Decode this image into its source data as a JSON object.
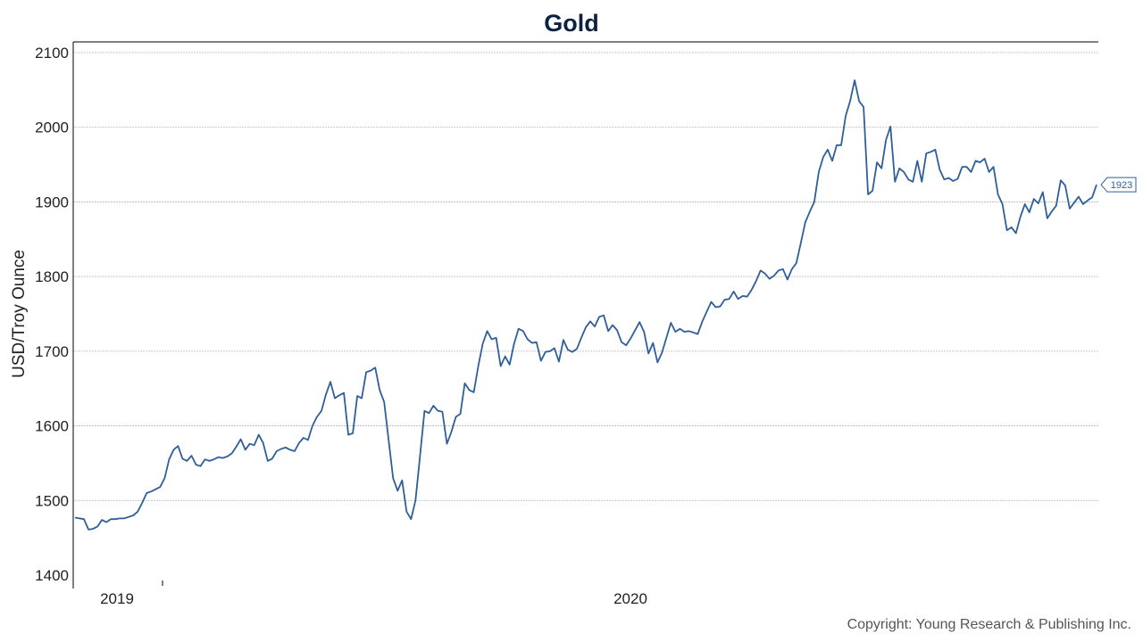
{
  "chart_data": {
    "type": "line",
    "title": "Gold",
    "ylabel": "USD/Troy Ounce",
    "xlabel": "",
    "ylim": [
      1400,
      2100
    ],
    "yticks": [
      "1400",
      "1500",
      "1600",
      "1700",
      "1800",
      "1900",
      "2000",
      "2100"
    ],
    "xticks": [
      "2019",
      "2020"
    ],
    "grid": true,
    "last_value_label": "1923",
    "series": [
      {
        "color": "#2e5f9a",
        "values": [
          1477,
          1476,
          1475,
          1461,
          1462,
          1465,
          1474,
          1471,
          1475,
          1475,
          1476,
          1476,
          1478,
          1480,
          1485,
          1497,
          1510,
          1512,
          1515,
          1518,
          1530,
          1555,
          1568,
          1573,
          1556,
          1553,
          1560,
          1548,
          1546,
          1555,
          1553,
          1555,
          1558,
          1557,
          1559,
          1563,
          1572,
          1582,
          1568,
          1576,
          1574,
          1588,
          1577,
          1553,
          1556,
          1566,
          1569,
          1571,
          1568,
          1566,
          1577,
          1584,
          1581,
          1600,
          1612,
          1620,
          1642,
          1659,
          1637,
          1641,
          1644,
          1588,
          1590,
          1640,
          1637,
          1672,
          1674,
          1678,
          1648,
          1632,
          1581,
          1530,
          1513,
          1527,
          1485,
          1475,
          1500,
          1560,
          1620,
          1617,
          1627,
          1620,
          1619,
          1576,
          1592,
          1612,
          1616,
          1657,
          1648,
          1645,
          1680,
          1710,
          1727,
          1716,
          1718,
          1680,
          1693,
          1682,
          1710,
          1730,
          1727,
          1716,
          1711,
          1712,
          1687,
          1699,
          1700,
          1704,
          1686,
          1715,
          1702,
          1699,
          1703,
          1718,
          1732,
          1740,
          1733,
          1746,
          1748,
          1727,
          1735,
          1728,
          1712,
          1708,
          1717,
          1728,
          1739,
          1726,
          1697,
          1711,
          1685,
          1698,
          1718,
          1738,
          1726,
          1730,
          1726,
          1727,
          1725,
          1723,
          1740,
          1753,
          1766,
          1759,
          1760,
          1769,
          1770,
          1780,
          1770,
          1774,
          1773,
          1782,
          1794,
          1808,
          1804,
          1797,
          1801,
          1808,
          1810,
          1796,
          1810,
          1818,
          1845,
          1873,
          1887,
          1900,
          1940,
          1960,
          1970,
          1955,
          1976,
          1976,
          2015,
          2035,
          2063,
          2035,
          2027,
          1910,
          1915,
          1953,
          1945,
          1983,
          2001,
          1927,
          1945,
          1940,
          1930,
          1927,
          1955,
          1927,
          1965,
          1967,
          1970,
          1943,
          1930,
          1932,
          1928,
          1931,
          1947,
          1947,
          1940,
          1955,
          1953,
          1958,
          1940,
          1947,
          1910,
          1897,
          1862,
          1866,
          1858,
          1880,
          1897,
          1886,
          1904,
          1898,
          1913,
          1878,
          1887,
          1895,
          1929,
          1922,
          1891,
          1899,
          1907,
          1897,
          1902,
          1906,
          1923
        ]
      }
    ]
  },
  "footer": {
    "copyright": "Copyright: Young Research & Publishing Inc."
  },
  "colors": {
    "title": "#0d2240",
    "line": "#2e5f9a",
    "grid": "#b8b8b8",
    "axis": "#000000"
  }
}
